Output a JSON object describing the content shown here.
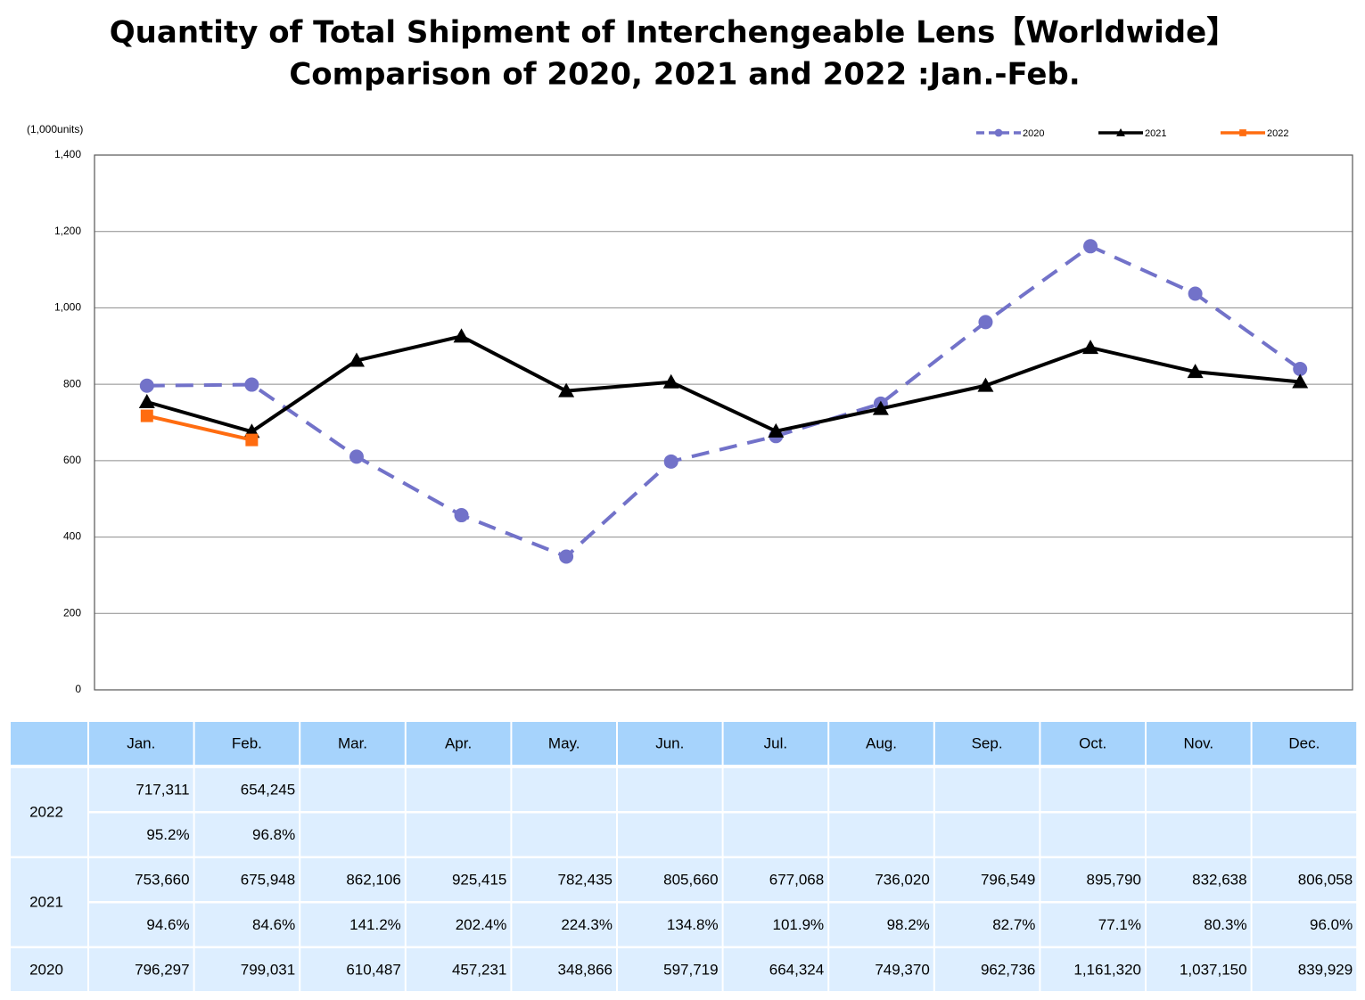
{
  "chart_data": {
    "type": "line",
    "title": "Quantity of Total Shipment of Interchengeable Lens【Worldwide】",
    "subtitle": "Comparison of 2020, 2021 and 2022 :Jan.-Feb.",
    "y_label": "(1,000units)",
    "categories": [
      "Jan.",
      "Feb.",
      "Mar.",
      "Apr.",
      "May.",
      "Jun.",
      "Jul.",
      "Aug.",
      "Sep.",
      "Oct.",
      "Nov.",
      "Dec."
    ],
    "ylim": [
      0,
      1400
    ],
    "yticks": [
      0,
      200,
      400,
      600,
      800,
      {
        "value": 1000,
        "label": "1,000"
      },
      {
        "value": 1200,
        "label": "1,200"
      },
      {
        "value": 1400,
        "label": "1,400"
      }
    ],
    "grid": true,
    "legend": "top-right",
    "series": [
      {
        "name": "2020",
        "color": "#7272c9",
        "dash": true,
        "marker": "circle",
        "values": [
          796.297,
          799.031,
          610.487,
          457.231,
          348.866,
          597.719,
          664.324,
          749.37,
          962.736,
          1161.32,
          1037.15,
          839.929
        ],
        "value_labels": [
          "796,297",
          "799,031",
          "610,487",
          "457,231",
          "348,866",
          "597,719",
          "664,324",
          "749,370",
          "962,736",
          "1,161,320",
          "1,037,150",
          "839,929"
        ]
      },
      {
        "name": "2021",
        "color": "#000000",
        "dash": false,
        "marker": "triangle",
        "values": [
          753.66,
          675.948,
          862.106,
          925.415,
          782.435,
          805.66,
          677.068,
          736.02,
          796.549,
          895.79,
          832.638,
          806.058
        ],
        "value_labels": [
          "753,660",
          "675,948",
          "862,106",
          "925,415",
          "782,435",
          "805,660",
          "677,068",
          "736,020",
          "796,549",
          "895,790",
          "832,638",
          "806,058"
        ],
        "change": [
          "94.6%",
          "84.6%",
          "141.2%",
          "202.4%",
          "224.3%",
          "134.8%",
          "101.9%",
          "98.2%",
          "82.7%",
          "77.1%",
          "80.3%",
          "96.0%"
        ]
      },
      {
        "name": "2022",
        "color": "#ff6c10",
        "dash": false,
        "marker": "square",
        "values": [
          717.311,
          654.245,
          null,
          null,
          null,
          null,
          null,
          null,
          null,
          null,
          null,
          null
        ],
        "value_labels": [
          "717,311",
          "654,245",
          null,
          null,
          null,
          null,
          null,
          null,
          null,
          null,
          null,
          null
        ],
        "change": [
          "95.2%",
          "96.8%",
          null,
          null,
          null,
          null,
          null,
          null,
          null,
          null,
          null,
          null
        ]
      }
    ]
  }
}
